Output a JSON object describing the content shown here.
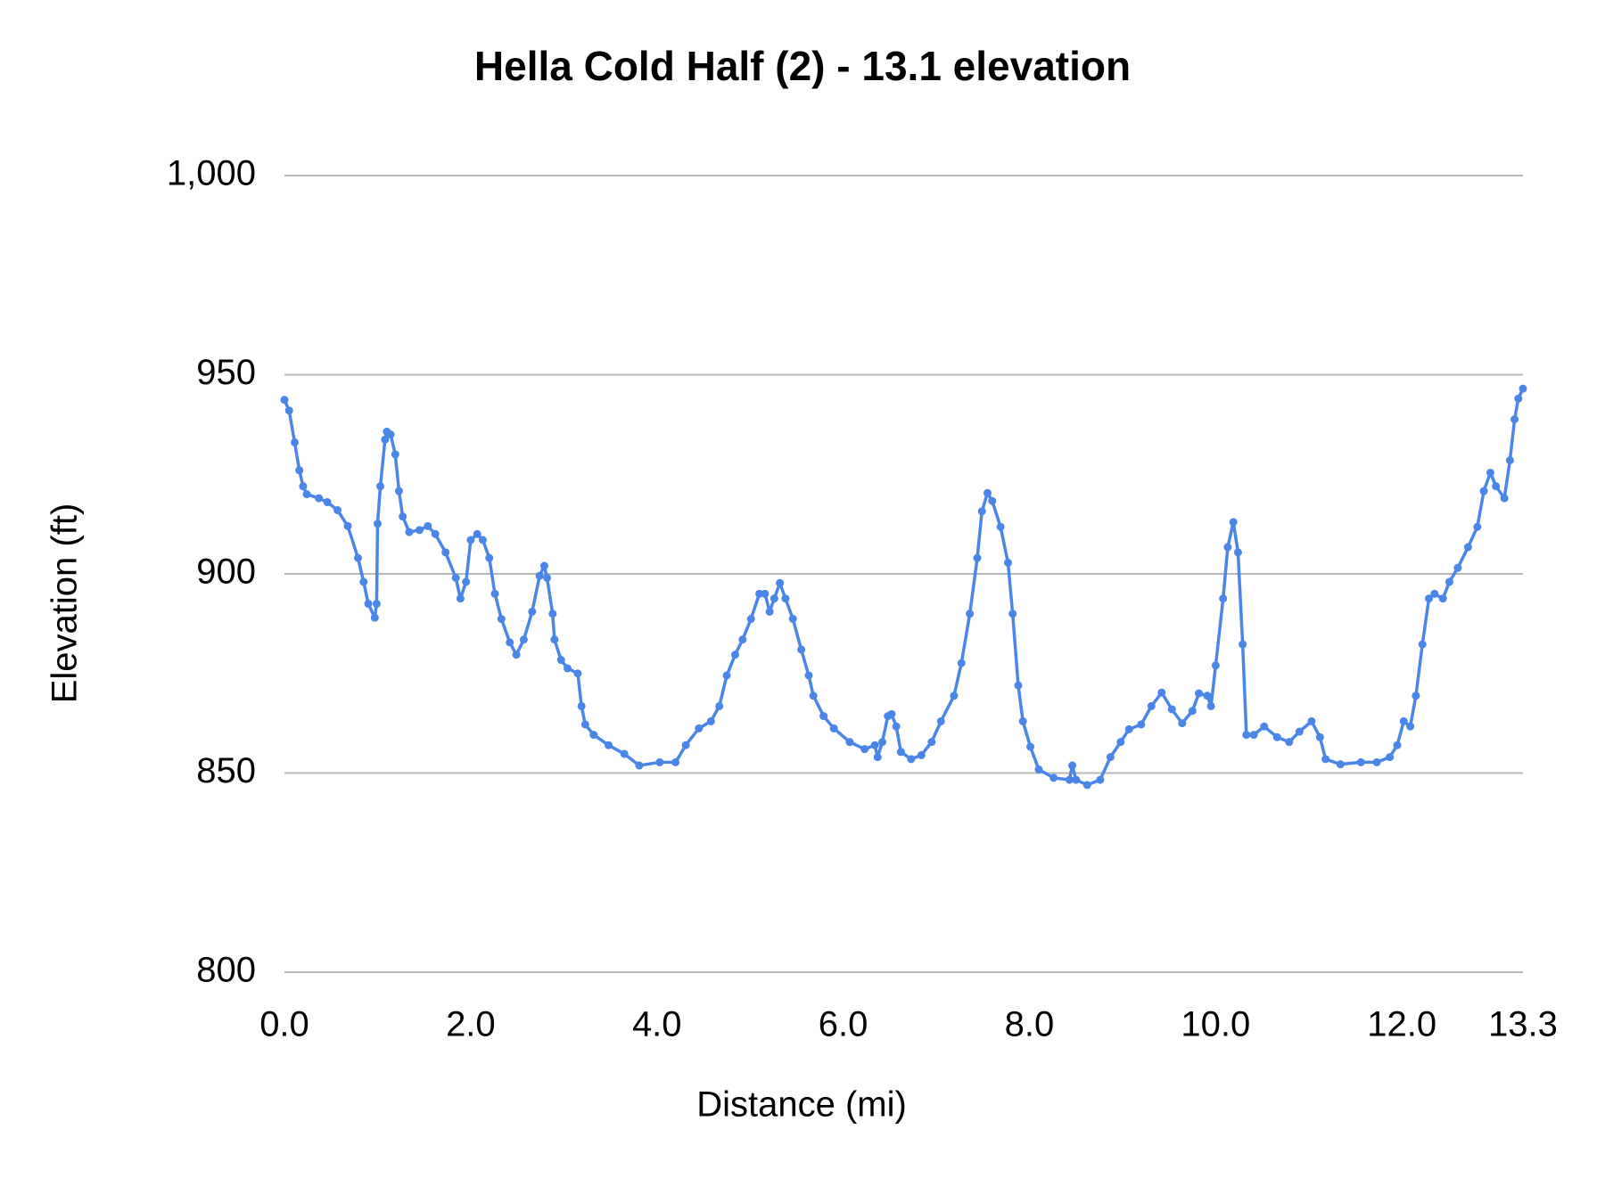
{
  "chart_data": {
    "type": "line",
    "title": "Hella Cold Half (2) - 13.1 elevation",
    "x_label": "Distance (mi)",
    "y_label": "Elevation (ft)",
    "color": "#4a86e8",
    "grid": true,
    "markers": true,
    "xlim": [
      0,
      13.3
    ],
    "xticks": [
      {
        "value": 0,
        "label": "0.0"
      },
      {
        "value": 2,
        "label": "2.0"
      },
      {
        "value": 4,
        "label": "4.0"
      },
      {
        "value": 6,
        "label": "6.0"
      },
      {
        "value": 8,
        "label": "8.0"
      },
      {
        "value": 10,
        "label": "10.0"
      },
      {
        "value": 12,
        "label": "12.0"
      },
      13.3
    ],
    "ylim": [
      800,
      1000
    ],
    "yticks": [
      800,
      850,
      900,
      950,
      {
        "value": 1000,
        "label": "1,000"
      }
    ],
    "x": [
      0,
      0.05,
      0.11,
      0.16,
      0.2,
      0.24,
      0.37,
      0.46,
      0.57,
      0.68,
      0.79,
      0.85,
      0.9,
      0.97,
      0.99,
      1.0,
      1.03,
      1.08,
      1.1,
      1.14,
      1.19,
      1.23,
      1.27,
      1.34,
      1.45,
      1.54,
      1.62,
      1.73,
      1.84,
      1.89,
      1.95,
      2.0,
      2.07,
      2.13,
      2.2,
      2.26,
      2.33,
      2.42,
      2.49,
      2.57,
      2.66,
      2.74,
      2.79,
      2.82,
      2.88,
      2.9,
      2.97,
      3.04,
      3.15,
      3.19,
      3.23,
      3.32,
      3.48,
      3.65,
      3.81,
      4.03,
      4.2,
      4.31,
      4.45,
      4.58,
      4.67,
      4.75,
      4.84,
      4.92,
      5.01,
      5.1,
      5.16,
      5.21,
      5.26,
      5.32,
      5.38,
      5.46,
      5.55,
      5.63,
      5.68,
      5.79,
      5.9,
      6.07,
      6.23,
      6.34,
      6.37,
      6.42,
      6.48,
      6.52,
      6.57,
      6.62,
      6.73,
      6.84,
      6.95,
      7.05,
      7.19,
      7.27,
      7.36,
      7.44,
      7.49,
      7.55,
      7.6,
      7.69,
      7.77,
      7.82,
      7.88,
      7.93,
      8.01,
      8.1,
      8.26,
      8.43,
      8.46,
      8.5,
      8.62,
      8.76,
      8.87,
      8.98,
      9.07,
      9.2,
      9.31,
      9.42,
      9.53,
      9.64,
      9.75,
      9.82,
      9.91,
      9.95,
      10.0,
      10.08,
      10.13,
      10.19,
      10.24,
      10.29,
      10.33,
      10.41,
      10.52,
      10.66,
      10.79,
      10.9,
      11.03,
      11.12,
      11.18,
      11.34,
      11.56,
      11.73,
      11.87,
      11.95,
      12.02,
      12.09,
      12.15,
      12.22,
      12.29,
      12.35,
      12.44,
      12.51,
      12.6,
      12.71,
      12.81,
      12.88,
      12.95,
      13.01,
      13.1,
      13.16,
      13.21,
      13.25,
      13.3
    ],
    "values": [
      943.7,
      941,
      933,
      926,
      922,
      920,
      919,
      918,
      916,
      912,
      904,
      898,
      892.5,
      889,
      892.5,
      912.6,
      922,
      933.7,
      935.7,
      935,
      930,
      920.8,
      914.4,
      910.5,
      911,
      912,
      910,
      905.4,
      899,
      893.8,
      898,
      908.5,
      910,
      908.5,
      904,
      895,
      888.7,
      882.8,
      879.7,
      883.5,
      890.5,
      899.5,
      902,
      899,
      890,
      883.5,
      878.4,
      876.3,
      875,
      866.8,
      862.2,
      859.6,
      857,
      854.8,
      851.9,
      852.7,
      852.7,
      857,
      861.2,
      863,
      866.8,
      874.5,
      879.7,
      883.5,
      888.7,
      895,
      895,
      890.5,
      893.8,
      897.7,
      893.8,
      888.7,
      881,
      874.5,
      869.4,
      864.3,
      861.2,
      857.8,
      856,
      857,
      854,
      857.8,
      864.3,
      864.8,
      861.7,
      855.3,
      853.5,
      854.5,
      857.8,
      863,
      869.4,
      877.6,
      890,
      904,
      915.7,
      920.3,
      918.3,
      911.8,
      902.8,
      890,
      872,
      863,
      856.6,
      850.9,
      848.8,
      848.3,
      851.9,
      848.3,
      847,
      848.3,
      854,
      857.8,
      861,
      862.2,
      866.8,
      870.2,
      866,
      862.5,
      865.6,
      870,
      869.4,
      866.8,
      877,
      893.8,
      906.7,
      913,
      905.4,
      882.3,
      859.6,
      859.6,
      861.7,
      859,
      857.8,
      860.4,
      863,
      859,
      853.5,
      852.2,
      852.7,
      852.7,
      854,
      857,
      863,
      861.7,
      869.4,
      882.3,
      893.8,
      895,
      893.8,
      898,
      901.5,
      906.7,
      911.8,
      920.8,
      925.4,
      922,
      919,
      928.5,
      938.8,
      944,
      946.5
    ]
  }
}
